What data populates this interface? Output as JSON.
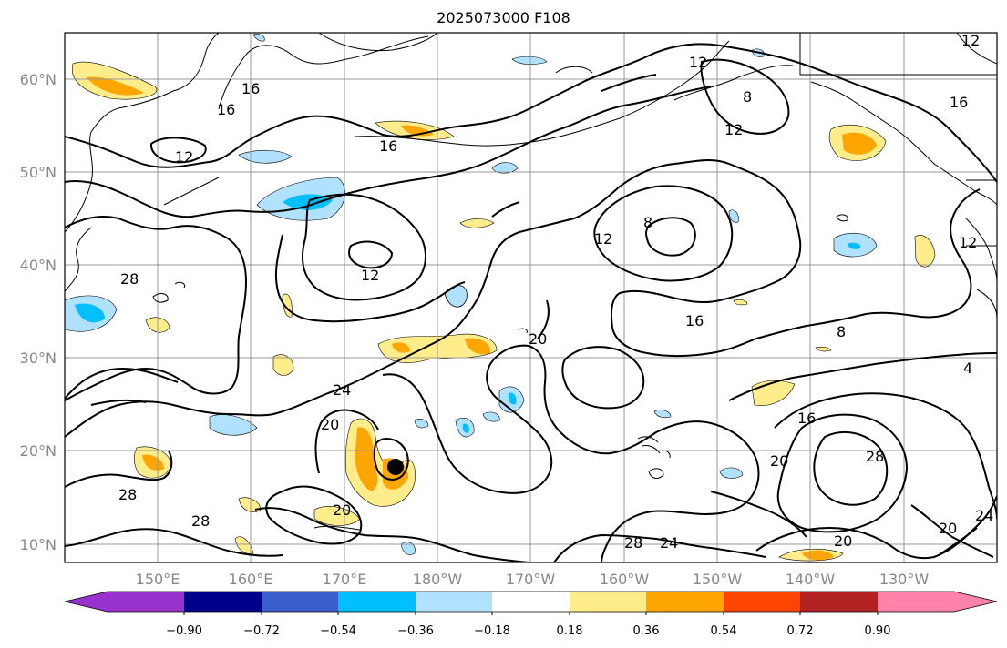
{
  "title": "2025073000 F108",
  "lat_labels": [
    "10°N",
    "20°N",
    "30°N",
    "40°N",
    "50°N",
    "60°N"
  ],
  "lon_labels": [
    "150°E",
    "160°E",
    "170°E",
    "180°W",
    "170°W",
    "160°W",
    "150°W",
    "140°W",
    "130°W"
  ],
  "colorbar": {
    "ticks": [
      "−0.90",
      "−0.72",
      "−0.54",
      "−0.36",
      "−0.18",
      "0.18",
      "0.36",
      "0.54",
      "0.72",
      "0.90"
    ],
    "colors": [
      "#9932cc",
      "#00008b",
      "#3a5fcd",
      "#00bfff",
      "#b0e2ff",
      "#ffffff",
      "#ffec8b",
      "#ffa500",
      "#ff4500",
      "#b22222",
      "#ff82ab"
    ]
  },
  "contour_labels": [
    "16",
    "12",
    "16",
    "16",
    "12",
    "12",
    "8",
    "12",
    "8",
    "12",
    "16",
    "12",
    "28",
    "20",
    "24",
    "16",
    "8",
    "4",
    "20",
    "20",
    "16",
    "28",
    "20",
    "28",
    "28",
    "20",
    "24",
    "28",
    "24",
    "20",
    "12"
  ],
  "storm_marker": "black-dot"
}
